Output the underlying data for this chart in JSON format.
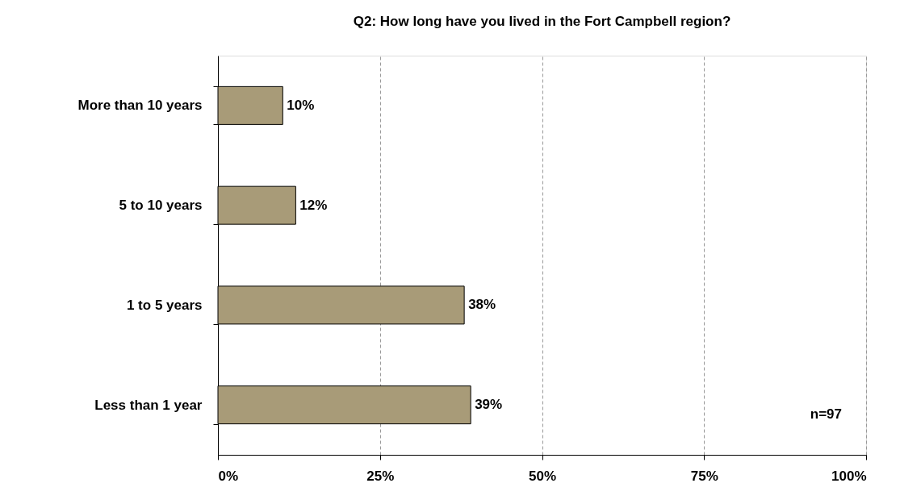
{
  "chart_data": {
    "type": "bar",
    "orientation": "horizontal",
    "title": "Q2: How long have you lived in the Fort Campbell region?",
    "categories": [
      "More than 10 years",
      "5 to 10 years",
      "1 to 5 years",
      "Less than 1 year"
    ],
    "values": [
      10,
      12,
      38,
      39
    ],
    "value_labels": [
      "10%",
      "12%",
      "38%",
      "39%"
    ],
    "color": "#a89b78",
    "xlim": [
      0,
      100
    ],
    "xticks": [
      {
        "value": 0,
        "label": "0%"
      },
      {
        "value": 25,
        "label": "25%"
      },
      {
        "value": 50,
        "label": "50%"
      },
      {
        "value": 75,
        "label": "75%"
      },
      {
        "value": 100,
        "label": "100%"
      }
    ],
    "grid": "x",
    "annotations": [
      "n=97"
    ]
  }
}
